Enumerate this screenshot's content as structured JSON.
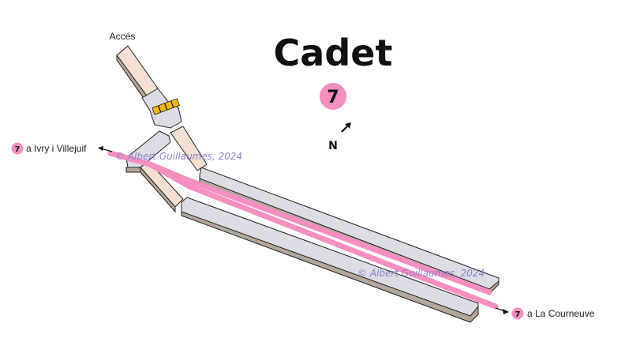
{
  "station": {
    "name": "Cadet",
    "line_number": "7",
    "line_color": "#f48fc0"
  },
  "access": {
    "label": "Accés"
  },
  "compass": {
    "label": "N"
  },
  "destinations": {
    "west": {
      "line": "7",
      "label": "a Ivry i Villejuif"
    },
    "east": {
      "line": "7",
      "label": "a La Courneuve"
    }
  },
  "watermarks": {
    "top": "© Albert Guillaumes, 2024",
    "bottom": "© Albert Guillaumes, 2024"
  },
  "colors": {
    "platform_top": "#dcdce4",
    "platform_side": "#b5a69a",
    "corridor_floor": "#f3e0d2",
    "stairs": "#f2b814",
    "outline": "#222222"
  }
}
